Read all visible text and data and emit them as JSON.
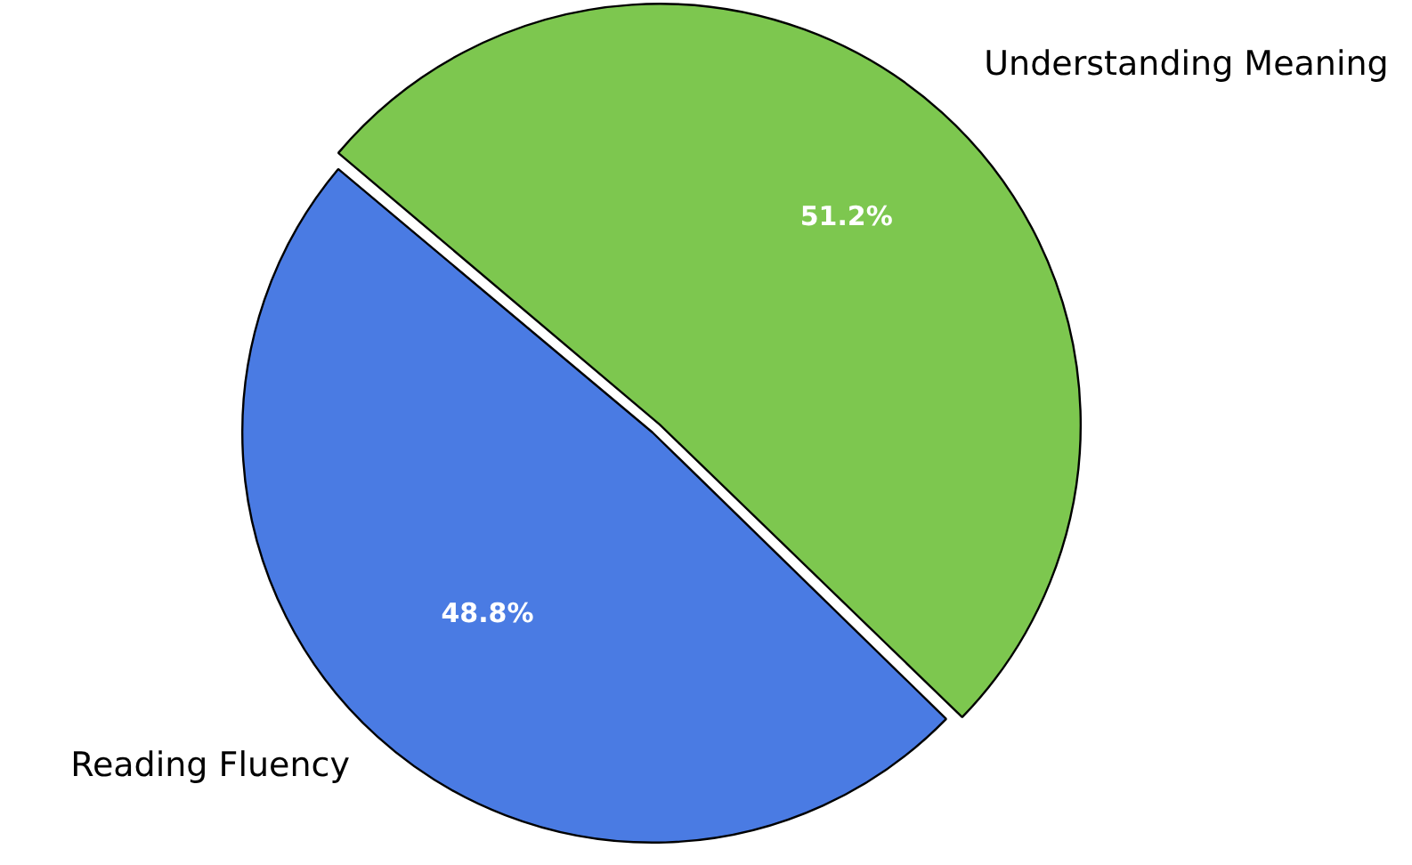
{
  "chart_data": {
    "type": "pie",
    "categories": [
      "Reading Fluency",
      "Understanding Meaning"
    ],
    "values": [
      48.8,
      51.2
    ],
    "colors": [
      "#4a7be3",
      "#7dc74f"
    ],
    "value_labels": [
      "48.8%",
      "51.2%"
    ]
  }
}
